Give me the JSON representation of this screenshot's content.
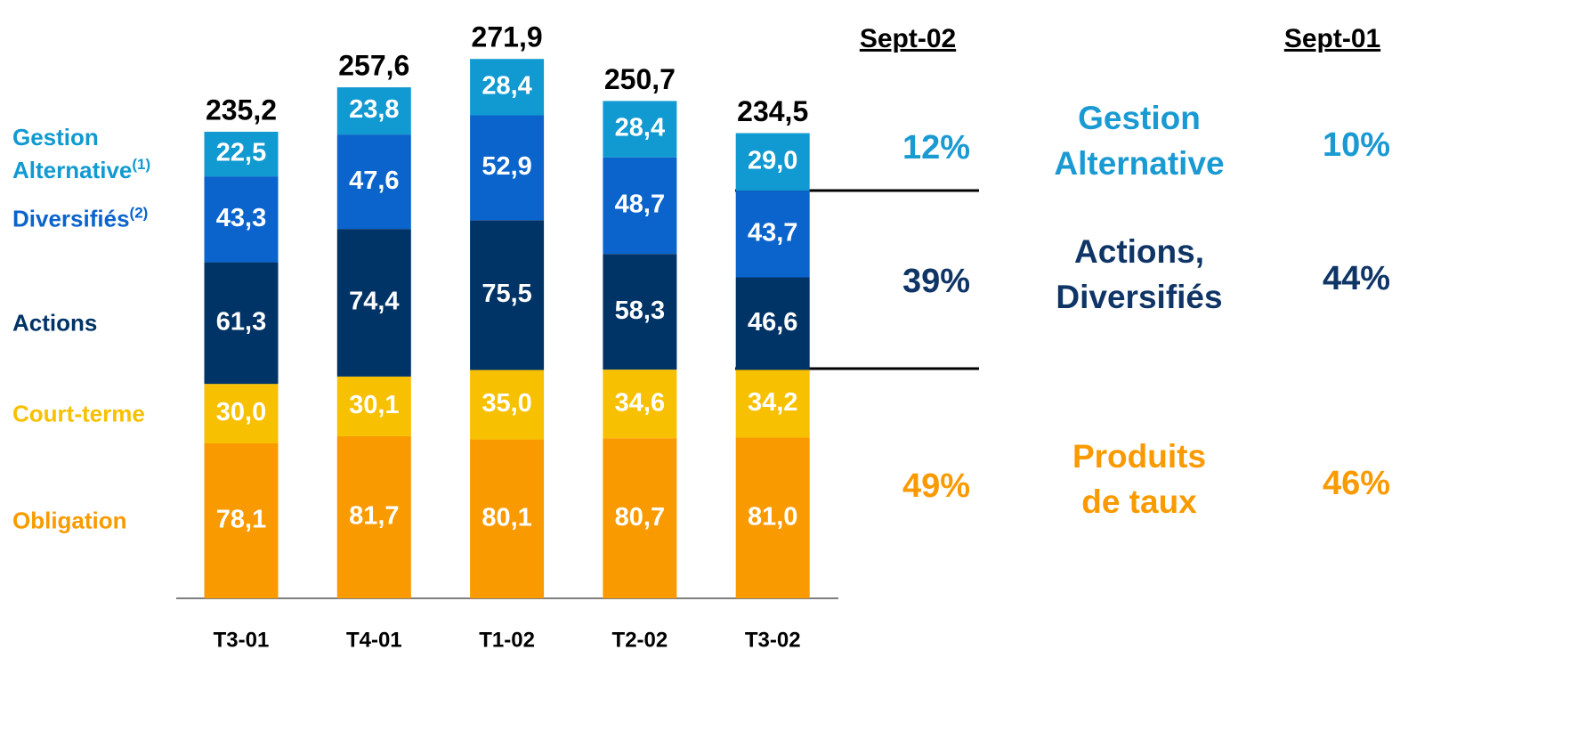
{
  "chart_data": {
    "type": "stacked_bar",
    "categories": [
      "T3-01",
      "T4-01",
      "T1-02",
      "T2-02",
      "T3-02"
    ],
    "series": [
      {
        "name": "Obligation",
        "color": "#f99a00",
        "values": [
          78.1,
          81.7,
          80.1,
          80.7,
          81.0
        ],
        "value_labels": [
          "78,1",
          "81,7",
          "80,1",
          "80,7",
          "81,0"
        ]
      },
      {
        "name": "Court-terme",
        "color": "#f7c000",
        "values": [
          30.0,
          30.1,
          35.0,
          34.6,
          34.2
        ],
        "value_labels": [
          "30,0",
          "30,1",
          "35,0",
          "34,6",
          "34,2"
        ]
      },
      {
        "name": "Actions",
        "color": "#003366",
        "values": [
          61.3,
          74.4,
          75.5,
          58.3,
          46.6
        ],
        "value_labels": [
          "61,3",
          "74,4",
          "75,5",
          "58,3",
          "46,6"
        ]
      },
      {
        "name": "Diversifiés",
        "note": "(2)",
        "color": "#0b64cc",
        "values": [
          43.3,
          47.6,
          52.9,
          48.7,
          43.7
        ],
        "value_labels": [
          "43,3",
          "47,6",
          "52,9",
          "48,7",
          "43,7"
        ]
      },
      {
        "name": "Gestion Alternative",
        "note": "(1)",
        "color": "#119ad1",
        "values": [
          22.5,
          23.8,
          28.4,
          28.4,
          29.0
        ],
        "value_labels": [
          "22,5",
          "23,8",
          "28,4",
          "28,4",
          "29,0"
        ]
      }
    ],
    "totals": [
      235.2,
      257.6,
      271.9,
      250.7,
      234.5
    ],
    "total_labels": [
      "235,2",
      "257,6",
      "271,9",
      "250,7",
      "234,5"
    ]
  },
  "summary": {
    "columns": [
      "Sept-02",
      "Sept-01"
    ],
    "rows": [
      {
        "lines": [
          "Gestion",
          "Alternative"
        ],
        "color": "#1a9ad2",
        "values": [
          "12%",
          "10%"
        ]
      },
      {
        "lines": [
          "Actions,",
          "Diversifiés"
        ],
        "color": "#0f3566",
        "values": [
          "39%",
          "44%"
        ]
      },
      {
        "lines": [
          "Produits",
          "de taux"
        ],
        "color": "#f99a00",
        "values": [
          "49%",
          "46%"
        ]
      }
    ]
  }
}
